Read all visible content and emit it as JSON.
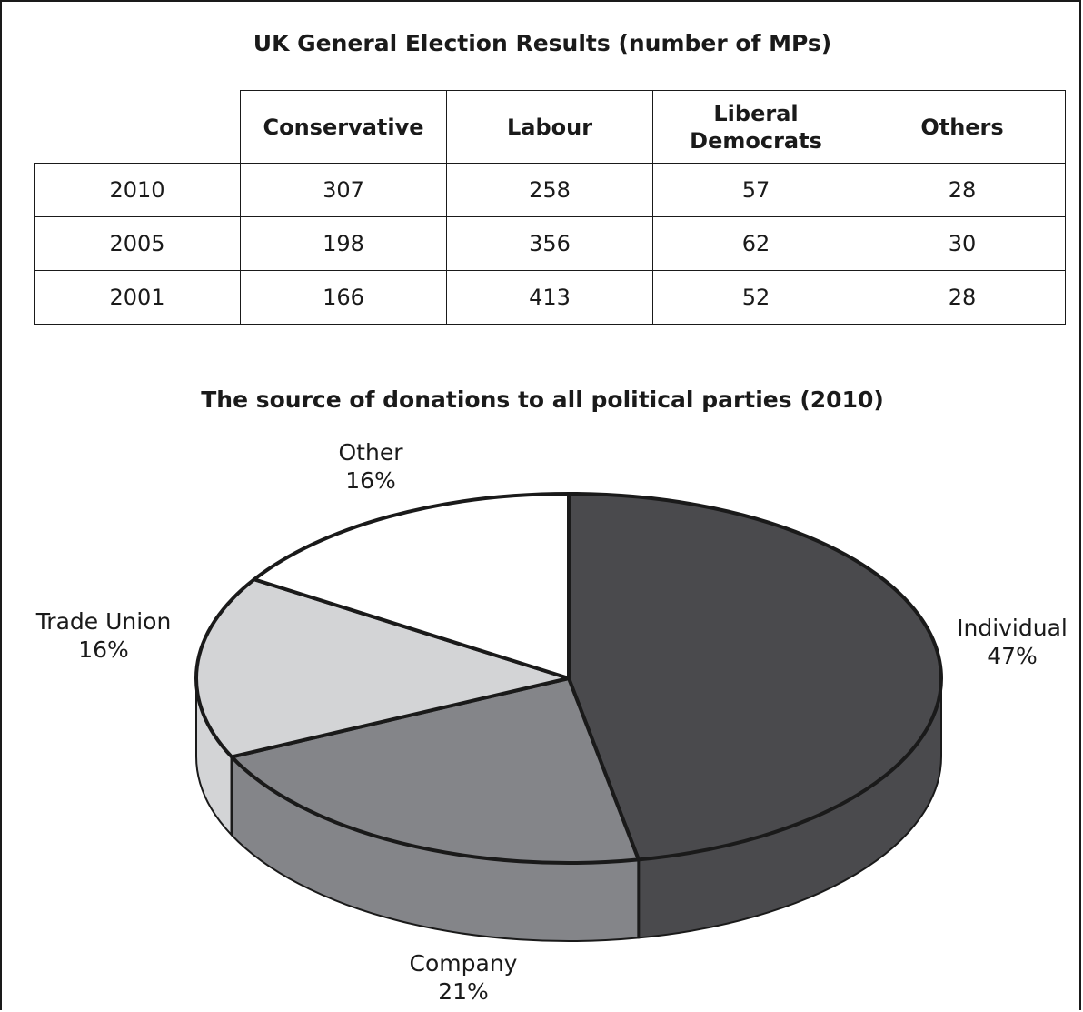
{
  "table": {
    "title": "UK General Election Results (number of MPs)",
    "columns": [
      "Conservative",
      "Labour",
      "Liberal Democrats",
      "Others"
    ],
    "column_lines": [
      [
        "Conservative"
      ],
      [
        "Labour"
      ],
      [
        "Liberal",
        "Democrats"
      ],
      [
        "Others"
      ]
    ],
    "rows": [
      {
        "year": "2010",
        "values": [
          307,
          258,
          57,
          28
        ]
      },
      {
        "year": "2005",
        "values": [
          198,
          356,
          62,
          30
        ]
      },
      {
        "year": "2001",
        "values": [
          166,
          413,
          52,
          28
        ]
      }
    ]
  },
  "chart_data": {
    "type": "pie",
    "title": "The source of donations to all political parties (2010)",
    "slices": [
      {
        "label": "Individual",
        "value": 47,
        "value_label": "47%",
        "color": "#4a4a4d"
      },
      {
        "label": "Company",
        "value": 21,
        "value_label": "21%",
        "color": "#848589"
      },
      {
        "label": "Trade Union",
        "value": 16,
        "value_label": "16%",
        "color": "#d3d4d6"
      },
      {
        "label": "Other",
        "value": 16,
        "value_label": "16%",
        "color": "#ffffff"
      }
    ]
  }
}
